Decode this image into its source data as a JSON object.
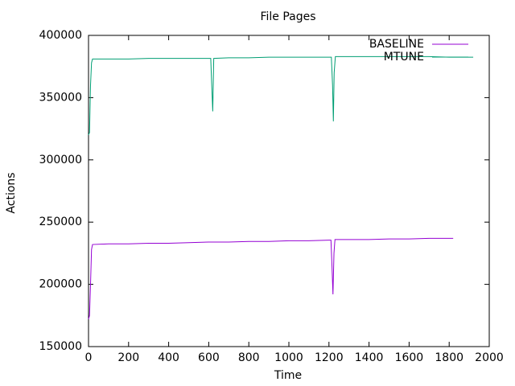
{
  "chart_data": {
    "type": "line",
    "title": "File Pages",
    "x_label": "Time",
    "y_label": "Actions",
    "xlim": [
      0,
      2000
    ],
    "xticks": [
      0,
      200,
      400,
      600,
      800,
      1000,
      1200,
      1400,
      1600,
      1800,
      2000
    ],
    "ylim": [
      150000,
      400000
    ],
    "yticks": [
      150000,
      200000,
      250000,
      300000,
      350000,
      400000
    ],
    "grid": false,
    "legend": "top-right",
    "series": [
      {
        "name": "BASELINE",
        "color": "#9400d3",
        "x": [
          0,
          5,
          10,
          15,
          20,
          100,
          200,
          300,
          400,
          500,
          600,
          700,
          800,
          900,
          1000,
          1100,
          1200,
          1210,
          1215,
          1220,
          1225,
          1230,
          1300,
          1400,
          1500,
          1600,
          1700,
          1820
        ],
        "values": [
          172000,
          175000,
          200000,
          228000,
          232000,
          232500,
          232500,
          233000,
          233000,
          233500,
          234000,
          234000,
          234500,
          234500,
          235000,
          235000,
          235500,
          235500,
          215000,
          192000,
          225000,
          236000,
          236000,
          236000,
          236500,
          236500,
          237000,
          237000
        ]
      },
      {
        "name": "MTUNE",
        "color": "#009e73",
        "x": [
          0,
          5,
          10,
          15,
          20,
          100,
          200,
          300,
          400,
          500,
          600,
          610,
          615,
          620,
          625,
          700,
          800,
          900,
          1000,
          1100,
          1200,
          1212,
          1218,
          1222,
          1226,
          1232,
          1300,
          1400,
          1500,
          1600,
          1700,
          1800,
          1920
        ],
        "values": [
          320000,
          322000,
          360000,
          378000,
          381000,
          381000,
          381000,
          381500,
          381500,
          381500,
          381500,
          381500,
          360000,
          339000,
          381500,
          382000,
          382000,
          382500,
          382500,
          382500,
          382500,
          382500,
          360000,
          331000,
          370000,
          383000,
          383000,
          383000,
          383000,
          383000,
          383000,
          382500,
          382500
        ]
      }
    ]
  }
}
